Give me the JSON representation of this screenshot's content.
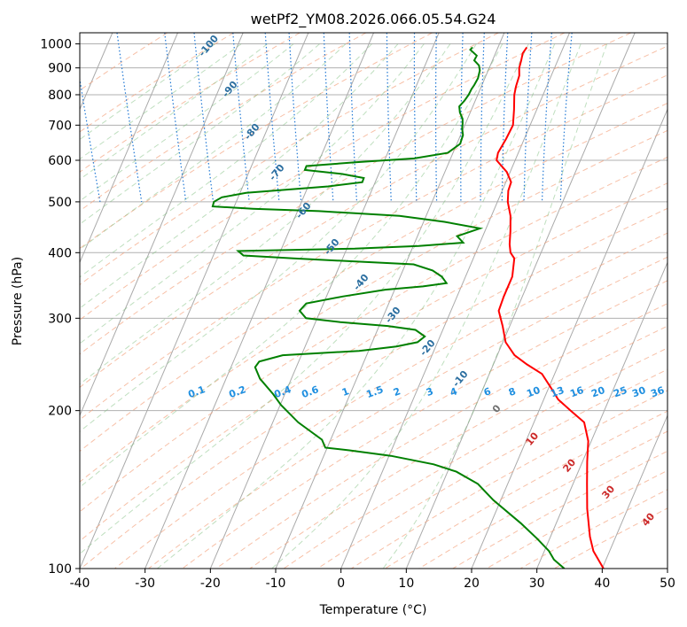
{
  "chart_data": {
    "type": "line",
    "title": "wetPf2_YM08.2026.066.05.54.G24",
    "xlabel": "Temperature (°C)",
    "ylabel": "Pressure (hPa)",
    "xlim": [
      -40,
      50
    ],
    "ylim": [
      1050,
      100
    ],
    "y_scale": "log",
    "x_ticks": [
      -40,
      -30,
      -20,
      -10,
      0,
      10,
      20,
      30,
      40,
      50
    ],
    "y_ticks": [
      1000,
      900,
      800,
      700,
      600,
      500,
      400,
      300,
      200,
      100
    ],
    "grid": true,
    "series": [
      {
        "color": "#ff0000",
        "points": [
          [
            27.5,
            985
          ],
          [
            26.5,
            960
          ],
          [
            25.8,
            930
          ],
          [
            25.0,
            900
          ],
          [
            24.5,
            870
          ],
          [
            23.3,
            830
          ],
          [
            22.5,
            800
          ],
          [
            21.5,
            750
          ],
          [
            20.3,
            700
          ],
          [
            18.4,
            660
          ],
          [
            16.2,
            620
          ],
          [
            15.5,
            600
          ],
          [
            16.3,
            570
          ],
          [
            16.3,
            545
          ],
          [
            15.3,
            525
          ],
          [
            14.5,
            500
          ],
          [
            14.0,
            470
          ],
          [
            13.0,
            440
          ],
          [
            12.0,
            415
          ],
          [
            11.6,
            400
          ],
          [
            11.8,
            390
          ],
          [
            10.3,
            360
          ],
          [
            7.7,
            330
          ],
          [
            6.0,
            310
          ],
          [
            5.6,
            290
          ],
          [
            5.0,
            270
          ],
          [
            5.5,
            255
          ],
          [
            6.8,
            245
          ],
          [
            8.5,
            235
          ],
          [
            9.0,
            220
          ],
          [
            9.3,
            210
          ],
          [
            10.5,
            200
          ],
          [
            11.8,
            190
          ],
          [
            11.2,
            175
          ],
          [
            9.7,
            160
          ],
          [
            8.2,
            145
          ],
          [
            6.6,
            130
          ],
          [
            5.2,
            115
          ],
          [
            4.8,
            108
          ],
          [
            5.2,
            100
          ]
        ]
      },
      {
        "color": "#008000",
        "points": [
          [
            19.2,
            985
          ],
          [
            18.7,
            975
          ],
          [
            19.3,
            950
          ],
          [
            18.6,
            930
          ],
          [
            19.0,
            910
          ],
          [
            18.8,
            890
          ],
          [
            18.0,
            860
          ],
          [
            17.0,
            835
          ],
          [
            16.3,
            820
          ],
          [
            15.5,
            800
          ],
          [
            14.5,
            780
          ],
          [
            13.3,
            760
          ],
          [
            13.0,
            740
          ],
          [
            13.0,
            720
          ],
          [
            12.7,
            705
          ],
          [
            12.3,
            690
          ],
          [
            12.0,
            670
          ],
          [
            11.0,
            645
          ],
          [
            8.5,
            620
          ],
          [
            3.0,
            605
          ],
          [
            -6.0,
            595
          ],
          [
            -14.0,
            585
          ],
          [
            -14.5,
            575
          ],
          [
            -9.0,
            565
          ],
          [
            -6.0,
            555
          ],
          [
            -6.5,
            545
          ],
          [
            -12.0,
            535
          ],
          [
            -25.0,
            520
          ],
          [
            -29.0,
            510
          ],
          [
            -30.5,
            500
          ],
          [
            -31.0,
            490
          ],
          [
            -25.0,
            485
          ],
          [
            -15.0,
            480
          ],
          [
            -3.0,
            470
          ],
          [
            3.5,
            458
          ],
          [
            8.5,
            445
          ],
          [
            4.5,
            430
          ],
          [
            5.0,
            418
          ],
          [
            -2.0,
            412
          ],
          [
            -12.0,
            407
          ],
          [
            -30.0,
            403
          ],
          [
            -29.5,
            395
          ],
          [
            -22.0,
            390
          ],
          [
            -4.0,
            380
          ],
          [
            -1.5,
            370
          ],
          [
            -0.5,
            360
          ],
          [
            -0.2,
            350
          ],
          [
            -4.0,
            345
          ],
          [
            -10.0,
            340
          ],
          [
            -17.0,
            330
          ],
          [
            -23.0,
            320
          ],
          [
            -24.5,
            310
          ],
          [
            -24.0,
            300
          ],
          [
            -19.0,
            295
          ],
          [
            -12.0,
            290
          ],
          [
            -8.0,
            285
          ],
          [
            -7.0,
            277
          ],
          [
            -8.5,
            270
          ],
          [
            -12.0,
            265
          ],
          [
            -18.0,
            260
          ],
          [
            -30.0,
            255
          ],
          [
            -34.0,
            248
          ],
          [
            -35.0,
            242
          ],
          [
            -35.0,
            230
          ],
          [
            -34.0,
            215
          ],
          [
            -33.5,
            205
          ],
          [
            -32.0,
            190
          ],
          [
            -29.5,
            176
          ],
          [
            -29.5,
            170
          ],
          [
            -26.0,
            168
          ],
          [
            -20.0,
            164
          ],
          [
            -14.0,
            158
          ],
          [
            -11.0,
            153
          ],
          [
            -8.5,
            145
          ],
          [
            -7.2,
            135
          ],
          [
            -4.5,
            122
          ],
          [
            -3.0,
            114
          ],
          [
            -2.0,
            108
          ],
          [
            -1.8,
            104
          ],
          [
            -0.8,
            100
          ]
        ]
      }
    ],
    "dry_adiabat_labels": [
      "-100",
      "-90",
      "-80",
      "-70",
      "-60",
      "-50",
      "-40",
      "-30",
      "-20",
      "-10"
    ],
    "moist_adiabat_labels": [
      "0",
      "10",
      "20",
      "30",
      "40"
    ],
    "mixing_ratio_labels": [
      "0.1",
      "0.2",
      "0.4",
      "0.6",
      "1",
      "1.5",
      "2",
      "3",
      "4",
      "6",
      "8",
      "10",
      "13",
      "16",
      "20",
      "25",
      "30",
      "36"
    ]
  }
}
